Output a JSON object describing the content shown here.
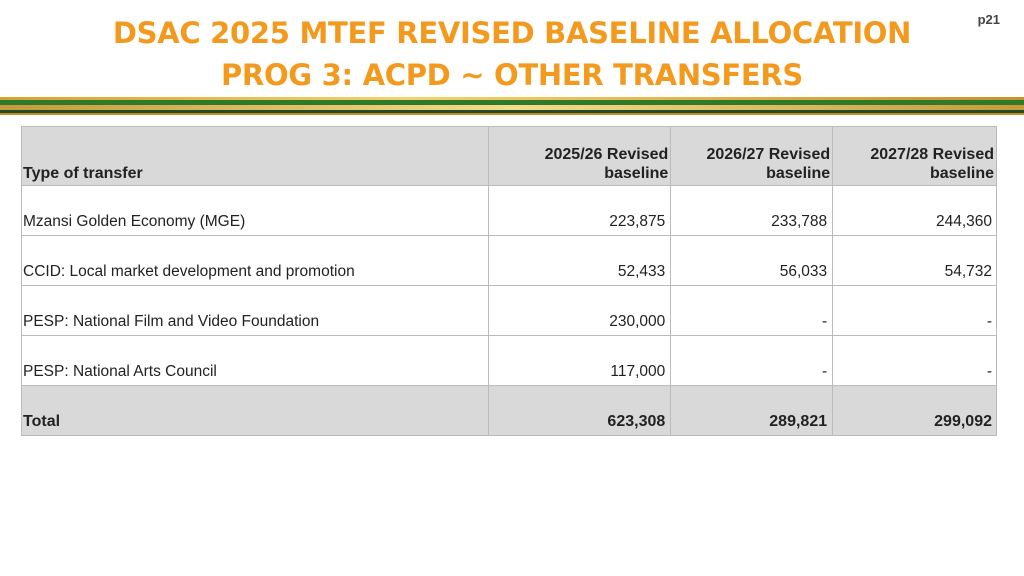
{
  "slide": {
    "title_line1": "DSAC 2025 MTEF REVISED BASELINE ALLOCATION",
    "title_line2": "PROG 3: ACPD ~ OTHER TRANSFERS",
    "page_number": "p21"
  },
  "table": {
    "headers": [
      "Type of transfer",
      "2025/26 Revised baseline",
      "2026/27 Revised baseline",
      "2027/28 Revised baseline"
    ],
    "rows": [
      {
        "name": "Mzansi Golden Economy (MGE)",
        "v1": "223,875",
        "v2": "233,788",
        "v3": "244,360"
      },
      {
        "name": "CCID: Local market development and promotion",
        "v1": "52,433",
        "v2": "56,033",
        "v3": "54,732"
      },
      {
        "name": "PESP: National Film and Video Foundation",
        "v1": "230,000",
        "v2": "-",
        "v3": "-"
      },
      {
        "name": "PESP: National Arts Council",
        "v1": "117,000",
        "v2": "-",
        "v3": "-"
      }
    ],
    "total": {
      "name": "Total",
      "v1": "623,308",
      "v2": "289,821",
      "v3": "299,092"
    }
  },
  "colors": {
    "title": "#f39a1e",
    "header_bg": "#d9d9d9",
    "stripe_green": "#2f7a2a",
    "stripe_gold": "#d6a232"
  }
}
